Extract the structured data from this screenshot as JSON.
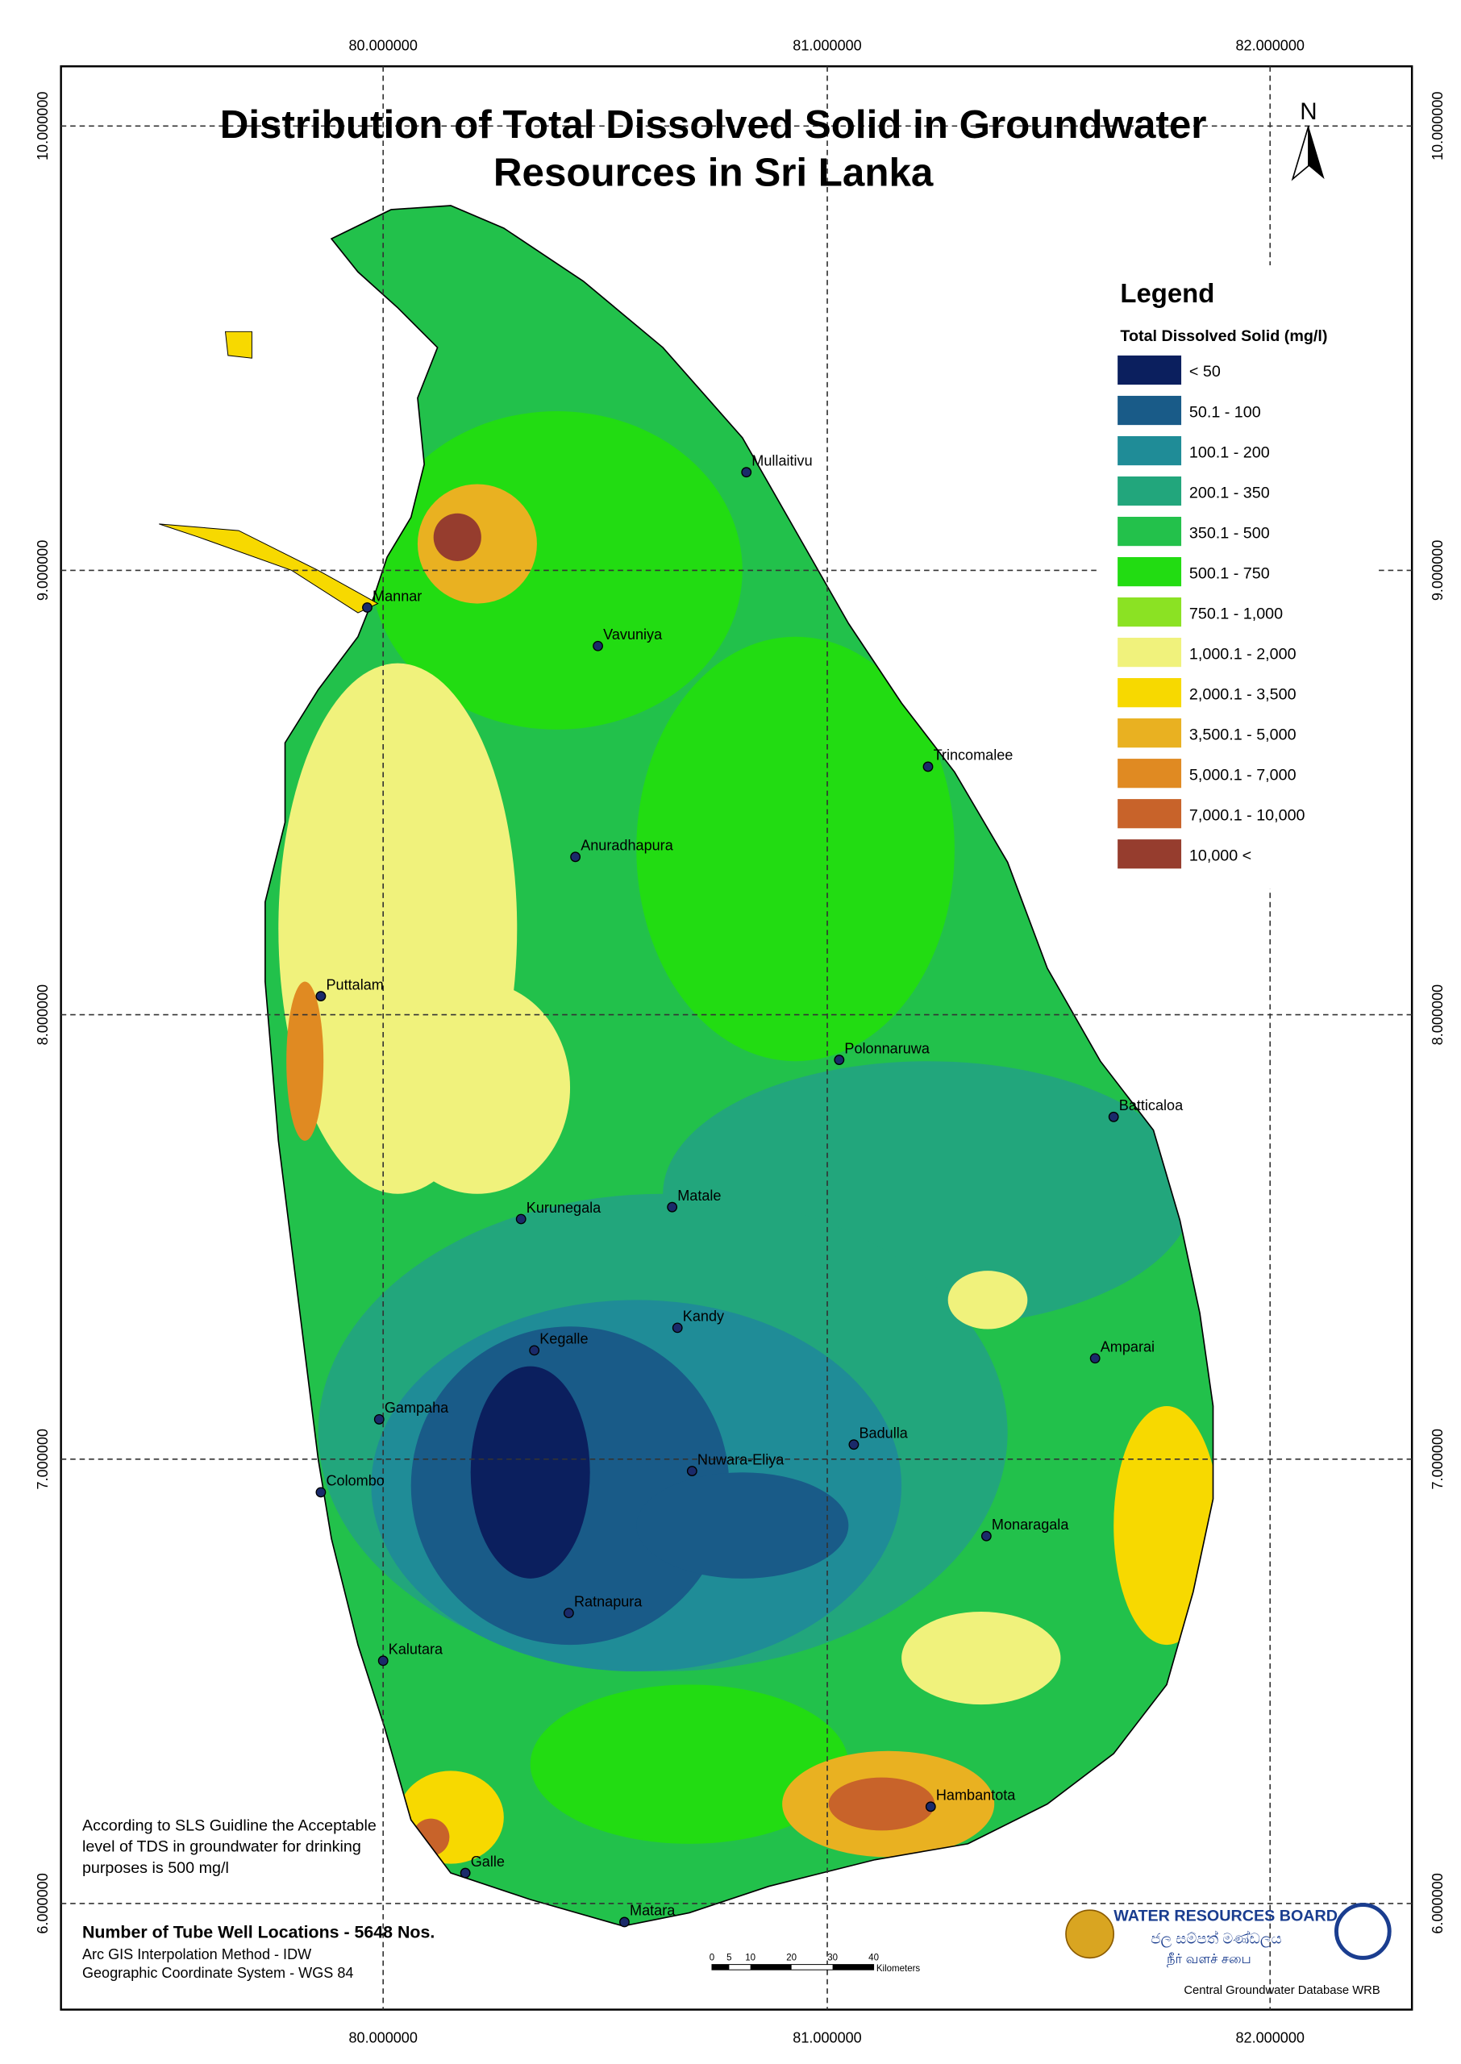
{
  "title": {
    "line1": "Distribution of Total Dissolved Solid in Groundwater",
    "line2": "Resources in Sri Lanka"
  },
  "north": "N",
  "coordinates": {
    "longitudes": [
      "80.000000",
      "81.000000",
      "82.000000"
    ],
    "latitudes": [
      "10.000000",
      "9.000000",
      "8.000000",
      "7.000000",
      "6.000000"
    ]
  },
  "legend": {
    "title": "Legend",
    "subtitle": "Total Dissolved Solid (mg/l)",
    "items": [
      {
        "label": "< 50",
        "color": "#0b1f5e"
      },
      {
        "label": "50.1 - 100",
        "color": "#195b88"
      },
      {
        "label": "100.1 - 200",
        "color": "#1f8c97"
      },
      {
        "label": "200.1 - 350",
        "color": "#22a67c"
      },
      {
        "label": "350.1 - 500",
        "color": "#23c14b"
      },
      {
        "label": "500.1 - 750",
        "color": "#22dc12"
      },
      {
        "label": "750.1 - 1,000",
        "color": "#8be223"
      },
      {
        "label": "1,000.1 - 2,000",
        "color": "#f0f27c"
      },
      {
        "label": "2,000.1 - 3,500",
        "color": "#f7d900"
      },
      {
        "label": "3,500.1 - 5,000",
        "color": "#e9b121"
      },
      {
        "label": "5,000.1 - 7,000",
        "color": "#e08a22"
      },
      {
        "label": "7,000.1 - 10,000",
        "color": "#c8632a"
      },
      {
        "label": "10,000 <",
        "color": "#963d2e"
      }
    ]
  },
  "cities": [
    "Mullaitivu",
    "Mannar",
    "Vavuniya",
    "Trincomalee",
    "Anuradhapura",
    "Puttalam",
    "Polonnaruwa",
    "Batticaloa",
    "Kurunegala",
    "Matale",
    "Kandy",
    "Kegalle",
    "Amparai",
    "Gampaha",
    "Badulla",
    "Nuwara-Eliya",
    "Colombo",
    "Monaragala",
    "Ratnapura",
    "Kalutara",
    "Hambantota",
    "Galle",
    "Matara"
  ],
  "note": [
    "According to SLS Guidline the Acceptable",
    "level of TDS in groundwater for drinking",
    "purposes is 500 mg/l"
  ],
  "footer": {
    "tube_wells": "Number of Tube Well Locations - 5648 Nos.",
    "method": "Arc GIS Interpolation Method - IDW",
    "system": "Geographic Coordinate System - WGS 84"
  },
  "scale_bar": {
    "ticks": [
      0,
      5,
      10,
      20,
      30,
      40
    ],
    "unit": "Kilometers"
  },
  "logo": {
    "english": "WATER RESOURCES BOARD",
    "sinhala": "ජල සම්පත් මණ්ඩලය",
    "tamil": "நீர் வளச் சபை"
  },
  "credit": "Central Groundwater Database WRB"
}
